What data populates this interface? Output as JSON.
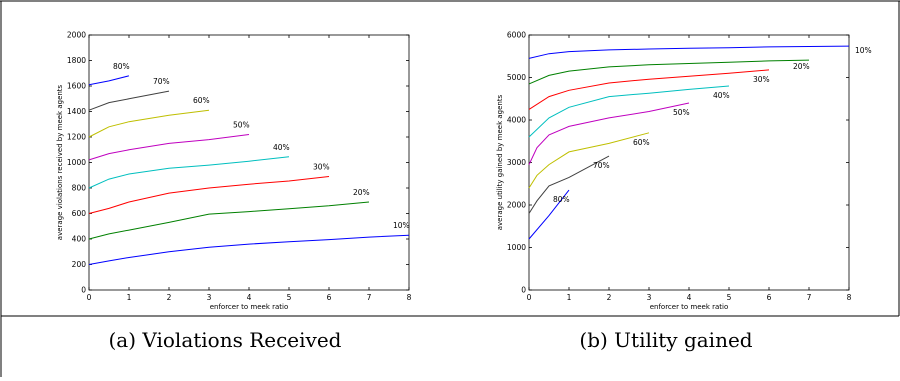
{
  "captions": {
    "a": "(a) Violations Received",
    "b": "(b) Utility gained"
  },
  "chart_data": [
    {
      "type": "line",
      "title": "",
      "xlabel": "enforcer to meek ratio",
      "ylabel": "average violations received by meek agents",
      "xlim": [
        0,
        8
      ],
      "ylim": [
        0,
        2000
      ],
      "xticks": [
        0,
        1,
        2,
        3,
        4,
        5,
        6,
        7,
        8
      ],
      "yticks": [
        0,
        200,
        400,
        600,
        800,
        1000,
        1200,
        1400,
        1600,
        1800,
        2000
      ],
      "grid": false,
      "series": [
        {
          "name": "10%",
          "color": "#0000ff",
          "x": [
            0,
            0.5,
            1,
            2,
            3,
            4,
            5,
            6,
            7,
            8
          ],
          "y": [
            200,
            228,
            255,
            300,
            335,
            360,
            378,
            395,
            415,
            430
          ]
        },
        {
          "name": "20%",
          "color": "#008000",
          "x": [
            0,
            0.5,
            1,
            2,
            3,
            4,
            5,
            6,
            7
          ],
          "y": [
            400,
            440,
            470,
            530,
            595,
            615,
            638,
            660,
            690
          ]
        },
        {
          "name": "30%",
          "color": "#ff0000",
          "x": [
            0,
            0.5,
            1,
            2,
            3,
            4,
            5,
            6
          ],
          "y": [
            600,
            640,
            690,
            760,
            800,
            830,
            855,
            890
          ]
        },
        {
          "name": "40%",
          "color": "#00bfbf",
          "x": [
            0,
            0.5,
            1,
            2,
            3,
            4,
            5
          ],
          "y": [
            800,
            870,
            910,
            955,
            980,
            1010,
            1045
          ]
        },
        {
          "name": "50%",
          "color": "#bf00bf",
          "x": [
            0,
            0.5,
            1,
            2,
            3,
            4
          ],
          "y": [
            1020,
            1070,
            1100,
            1150,
            1180,
            1220
          ]
        },
        {
          "name": "60%",
          "color": "#bfbf00",
          "x": [
            0,
            0.5,
            1,
            2,
            3
          ],
          "y": [
            1200,
            1280,
            1320,
            1370,
            1410
          ]
        },
        {
          "name": "70%",
          "color": "#404040",
          "x": [
            0,
            0.5,
            1,
            2
          ],
          "y": [
            1410,
            1470,
            1500,
            1560
          ]
        },
        {
          "name": "80%",
          "color": "#0000ff",
          "x": [
            0,
            0.5,
            1
          ],
          "y": [
            1610,
            1640,
            1680
          ]
        }
      ]
    },
    {
      "type": "line",
      "title": "",
      "xlabel": "enforcer to meek ratio",
      "ylabel": "average utility gained by meek agents",
      "xlim": [
        0,
        8
      ],
      "ylim": [
        0,
        6000
      ],
      "xticks": [
        0,
        1,
        2,
        3,
        4,
        5,
        6,
        7,
        8
      ],
      "yticks": [
        0,
        1000,
        2000,
        3000,
        4000,
        5000,
        6000
      ],
      "grid": false,
      "series": [
        {
          "name": "10%",
          "color": "#0000ff",
          "x": [
            0,
            0.5,
            1,
            2,
            3,
            4,
            5,
            6,
            7,
            8
          ],
          "y": [
            5450,
            5560,
            5610,
            5650,
            5670,
            5690,
            5700,
            5720,
            5730,
            5740
          ]
        },
        {
          "name": "20%",
          "color": "#008000",
          "x": [
            0,
            0.5,
            1,
            2,
            3,
            4,
            5,
            6,
            7
          ],
          "y": [
            4850,
            5050,
            5150,
            5250,
            5300,
            5330,
            5360,
            5390,
            5410
          ]
        },
        {
          "name": "30%",
          "color": "#ff0000",
          "x": [
            0,
            0.5,
            1,
            2,
            3,
            4,
            5,
            6
          ],
          "y": [
            4250,
            4550,
            4700,
            4870,
            4960,
            5030,
            5100,
            5180
          ]
        },
        {
          "name": "40%",
          "color": "#00bfbf",
          "x": [
            0,
            0.5,
            1,
            2,
            3,
            4,
            5
          ],
          "y": [
            3600,
            4050,
            4300,
            4550,
            4630,
            4720,
            4800
          ]
        },
        {
          "name": "50%",
          "color": "#bf00bf",
          "x": [
            0,
            0.2,
            0.5,
            1,
            2,
            3,
            4
          ],
          "y": [
            2950,
            3350,
            3650,
            3850,
            4050,
            4200,
            4400
          ]
        },
        {
          "name": "60%",
          "color": "#bfbf00",
          "x": [
            0,
            0.2,
            0.5,
            1,
            2,
            3
          ],
          "y": [
            2400,
            2700,
            2950,
            3250,
            3450,
            3700
          ]
        },
        {
          "name": "70%",
          "color": "#404040",
          "x": [
            0,
            0.2,
            0.5,
            1,
            2
          ],
          "y": [
            1800,
            2100,
            2450,
            2650,
            3150
          ]
        },
        {
          "name": "80%",
          "color": "#0000ff",
          "x": [
            0,
            0.5,
            1
          ],
          "y": [
            1200,
            1750,
            2350
          ]
        }
      ]
    }
  ]
}
